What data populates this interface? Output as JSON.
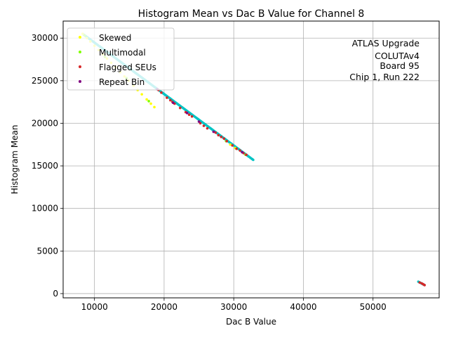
{
  "chart_data": {
    "type": "scatter",
    "title": "Histogram Mean vs Dac B Value for Channel 8",
    "xlabel": "Dac B Value",
    "ylabel": "Histogram Mean",
    "xlim": [
      5500,
      59500
    ],
    "ylim": [
      -500,
      32000
    ],
    "xticks": [
      10000,
      20000,
      30000,
      40000,
      50000
    ],
    "yticks": [
      0,
      5000,
      10000,
      15000,
      20000,
      25000,
      30000
    ],
    "xtick_labels": [
      "10000",
      "20000",
      "30000",
      "40000",
      "50000"
    ],
    "ytick_labels": [
      "0",
      "5000",
      "10000",
      "15000",
      "20000",
      "25000",
      "30000"
    ],
    "grid": true,
    "legend_position": "top-left",
    "annotation": [
      "ATLAS Upgrade",
      "COLUTAv4",
      "Board 95",
      "Chip 1, Run 222"
    ],
    "base_color": "#00c4c4",
    "series": [
      {
        "name": "Skewed",
        "color": "#ffff00",
        "points": [
          [
            8300,
            30500
          ],
          [
            8900,
            30000
          ],
          [
            9400,
            29600
          ],
          [
            10000,
            29100
          ],
          [
            10600,
            28600
          ],
          [
            11200,
            28100
          ],
          [
            11800,
            27600
          ],
          [
            12400,
            27100
          ],
          [
            13000,
            26600
          ],
          [
            13700,
            26000
          ],
          [
            14300,
            25500
          ],
          [
            14900,
            25000
          ],
          [
            15600,
            24400
          ],
          [
            16200,
            23900
          ],
          [
            16800,
            23400
          ],
          [
            17500,
            22800
          ],
          [
            18100,
            22300
          ],
          [
            18600,
            21900
          ],
          [
            29500,
            17500
          ],
          [
            30200,
            17100
          ]
        ]
      },
      {
        "name": "Multimodal",
        "color": "#7fff00",
        "points": [
          [
            8600,
            30300
          ],
          [
            11500,
            27800
          ],
          [
            14600,
            25300
          ],
          [
            17800,
            22600
          ],
          [
            28900,
            17900
          ],
          [
            31700,
            16300
          ]
        ]
      },
      {
        "name": "Flagged SEUs",
        "color": "#d62728",
        "points": [
          [
            19200,
            23900
          ],
          [
            19600,
            23600
          ],
          [
            20400,
            23000
          ],
          [
            20900,
            22700
          ],
          [
            21200,
            22500
          ],
          [
            21500,
            22300
          ],
          [
            22300,
            21800
          ],
          [
            23100,
            21300
          ],
          [
            23600,
            21000
          ],
          [
            24000,
            20800
          ],
          [
            25200,
            20000
          ],
          [
            25700,
            19700
          ],
          [
            26200,
            19400
          ],
          [
            27400,
            18900
          ],
          [
            27800,
            18600
          ],
          [
            28200,
            18400
          ],
          [
            28600,
            18200
          ],
          [
            29000,
            17900
          ],
          [
            29800,
            17400
          ],
          [
            30400,
            17000
          ],
          [
            30900,
            16800
          ],
          [
            31400,
            16500
          ],
          [
            31800,
            16300
          ],
          [
            56700,
            1300
          ],
          [
            57000,
            1200
          ],
          [
            57200,
            1100
          ],
          [
            57400,
            1000
          ]
        ]
      },
      {
        "name": "Repeat Bin",
        "color": "#800080",
        "points": [
          [
            19000,
            24000
          ],
          [
            21300,
            22400
          ],
          [
            23300,
            21200
          ],
          [
            25000,
            20200
          ],
          [
            27100,
            19000
          ],
          [
            31200,
            16600
          ]
        ]
      }
    ],
    "base_segments": [
      {
        "x0": 8300,
        "x1": 32800,
        "y0": 30500,
        "y1": 15700
      },
      {
        "x0": 56500,
        "x1": 57400,
        "y0": 1400,
        "y1": 1000
      }
    ]
  }
}
